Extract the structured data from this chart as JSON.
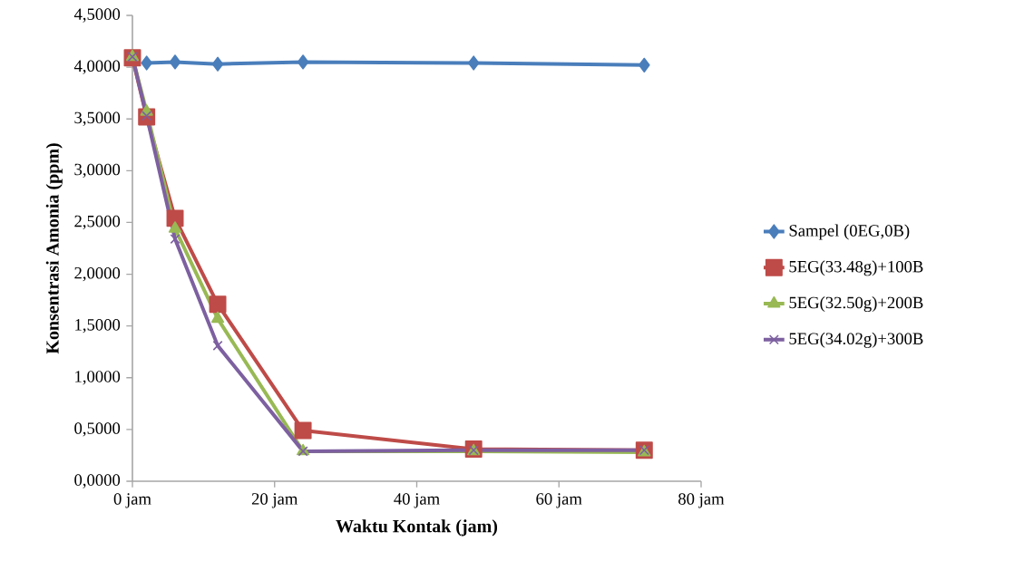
{
  "chart_data": {
    "type": "line",
    "xlabel": "Waktu Kontak (jam)",
    "ylabel": "Konsentrasi Amonia (ppm)",
    "x": [
      0,
      2,
      6,
      12,
      24,
      48,
      72
    ],
    "series": [
      {
        "name": "Sampel (0EG,0B)",
        "color": "#4a7ebb",
        "marker": "diamond",
        "values": [
          null,
          4.04,
          4.05,
          4.03,
          4.05,
          4.04,
          4.02
        ]
      },
      {
        "name": "5EG(33.48g)+100B",
        "color": "#be4b48",
        "marker": "square",
        "values": [
          4.09,
          3.52,
          2.54,
          1.71,
          0.49,
          0.31,
          0.3
        ]
      },
      {
        "name": "5EG(32.50g)+200B",
        "color": "#98b954",
        "marker": "triangle",
        "values": [
          4.1,
          3.57,
          2.44,
          1.57,
          0.29,
          0.29,
          0.28
        ]
      },
      {
        "name": "5EG(34.02g)+300B",
        "color": "#7d60a0",
        "marker": "cross",
        "values": [
          4.1,
          3.53,
          2.34,
          1.31,
          0.29,
          0.3,
          0.3
        ]
      }
    ],
    "xlim": [
      0,
      80
    ],
    "xticks": [
      {
        "value": 0,
        "label": "0 jam"
      },
      {
        "value": 20,
        "label": "20 jam"
      },
      {
        "value": 40,
        "label": "40 jam"
      },
      {
        "value": 60,
        "label": "60 jam"
      },
      {
        "value": 80,
        "label": "80 jam"
      }
    ],
    "ylim": [
      0,
      4.5
    ],
    "yticks": [
      {
        "value": 0,
        "label": "0,0000"
      },
      {
        "value": 0.5,
        "label": "0,5000"
      },
      {
        "value": 1,
        "label": "1,0000"
      },
      {
        "value": 1.5,
        "label": "1,5000"
      },
      {
        "value": 2,
        "label": "2,0000"
      },
      {
        "value": 2.5,
        "label": "2,5000"
      },
      {
        "value": 3,
        "label": "3,0000"
      },
      {
        "value": 3.5,
        "label": "3,5000"
      },
      {
        "value": 4,
        "label": "4,0000"
      },
      {
        "value": 4.5,
        "label": "4,5000"
      }
    ],
    "grid": false,
    "legend": "right",
    "line_style": "solid"
  }
}
